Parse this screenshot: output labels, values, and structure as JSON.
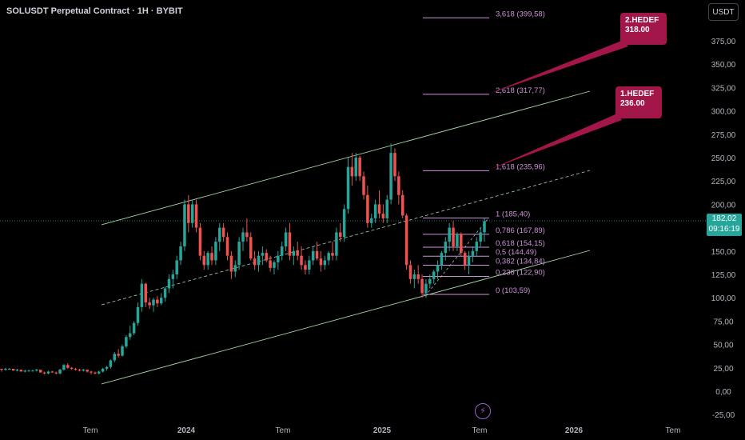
{
  "header": {
    "symbol_title": "SOLUSDT Perpetual Contract · 1H · BYBIT",
    "currency_button": "USDT"
  },
  "price_tag": {
    "price": "182,02",
    "countdown": "09:16:19"
  },
  "targets": [
    {
      "label": "2.HEDEF",
      "value": "318.00"
    },
    {
      "label": "1.HEDEF",
      "value": "236.00"
    }
  ],
  "colors": {
    "up": "#26a69a",
    "down": "#ef5350",
    "channel": "#a5d6a7",
    "fib": "#ce93d8",
    "target": "#a3164a",
    "price_line": "#26a69a"
  },
  "icons": {
    "bolt": "lightning-icon"
  },
  "chart_data": {
    "type": "candlestick",
    "y_axis": {
      "ylim": [
        -25,
        400
      ],
      "tick_labels": [
        "375,00",
        "350,00",
        "325,00",
        "300,00",
        "275,00",
        "250,00",
        "225,00",
        "200,00",
        "175,00",
        "150,00",
        "125,00",
        "100,00",
        "75,00",
        "50,00",
        "25,00",
        "0,00",
        "-25,00"
      ],
      "tick_values": [
        375,
        350,
        325,
        300,
        275,
        250,
        225,
        200,
        175,
        150,
        125,
        100,
        75,
        50,
        25,
        0,
        -25
      ]
    },
    "x_axis": {
      "tick_labels": [
        "Tem",
        "2024",
        "Tem",
        "2025",
        "Tem",
        "2026",
        "Tem"
      ]
    },
    "last_price": 182.02,
    "fibonacci": [
      {
        "label": "3,618 (399,58)",
        "value": 399.58
      },
      {
        "label": "2,618 (317,77)",
        "value": 317.77
      },
      {
        "label": "1,618 (235,96)",
        "value": 235.96
      },
      {
        "label": "1 (185,40)",
        "value": 185.4
      },
      {
        "label": "0,786 (167,89)",
        "value": 167.89
      },
      {
        "label": "0,618 (154,15)",
        "value": 154.15
      },
      {
        "label": "0,5 (144,49)",
        "value": 144.49
      },
      {
        "label": "0,382 (134,84)",
        "value": 134.84
      },
      {
        "label": "0,236 (122,90)",
        "value": 122.9
      },
      {
        "label": "0 (103,59)",
        "value": 103.59
      }
    ],
    "candles_ohlc": [
      [
        24,
        24,
        21,
        23
      ],
      [
        23,
        25,
        22,
        24
      ],
      [
        24,
        25,
        23,
        24
      ],
      [
        24,
        24,
        22,
        22
      ],
      [
        22,
        24,
        21,
        23
      ],
      [
        23,
        23,
        21,
        21
      ],
      [
        21,
        23,
        20,
        22
      ],
      [
        22,
        23,
        21,
        22
      ],
      [
        22,
        23,
        21,
        22
      ],
      [
        22,
        24,
        21,
        23
      ],
      [
        23,
        23,
        20,
        20
      ],
      [
        20,
        21,
        18,
        19
      ],
      [
        19,
        22,
        18,
        21
      ],
      [
        21,
        22,
        20,
        20
      ],
      [
        20,
        21,
        18,
        19
      ],
      [
        19,
        24,
        18,
        23
      ],
      [
        23,
        29,
        22,
        28
      ],
      [
        28,
        30,
        24,
        25
      ],
      [
        25,
        26,
        23,
        24
      ],
      [
        24,
        25,
        22,
        23
      ],
      [
        23,
        24,
        21,
        22
      ],
      [
        22,
        24,
        21,
        23
      ],
      [
        23,
        23,
        20,
        21
      ],
      [
        21,
        22,
        18,
        20
      ],
      [
        20,
        21,
        18,
        19
      ],
      [
        19,
        22,
        18,
        21
      ],
      [
        21,
        25,
        20,
        24
      ],
      [
        24,
        27,
        22,
        26
      ],
      [
        26,
        34,
        24,
        33
      ],
      [
        33,
        42,
        31,
        40
      ],
      [
        40,
        45,
        36,
        38
      ],
      [
        38,
        50,
        37,
        48
      ],
      [
        48,
        60,
        46,
        58
      ],
      [
        58,
        70,
        55,
        62
      ],
      [
        62,
        75,
        60,
        73
      ],
      [
        73,
        95,
        70,
        90
      ],
      [
        90,
        120,
        85,
        115
      ],
      [
        115,
        116,
        90,
        95
      ],
      [
        95,
        100,
        88,
        92
      ],
      [
        92,
        100,
        85,
        98
      ],
      [
        98,
        102,
        90,
        94
      ],
      [
        94,
        105,
        92,
        100
      ],
      [
        100,
        112,
        96,
        110
      ],
      [
        110,
        125,
        105,
        120
      ],
      [
        120,
        130,
        110,
        125
      ],
      [
        125,
        145,
        120,
        140
      ],
      [
        140,
        160,
        135,
        155
      ],
      [
        155,
        205,
        150,
        200
      ],
      [
        200,
        210,
        170,
        180
      ],
      [
        180,
        205,
        175,
        200
      ],
      [
        200,
        205,
        170,
        175
      ],
      [
        175,
        180,
        140,
        145
      ],
      [
        145,
        150,
        130,
        135
      ],
      [
        135,
        150,
        130,
        148
      ],
      [
        148,
        155,
        135,
        140
      ],
      [
        140,
        165,
        135,
        160
      ],
      [
        160,
        180,
        150,
        175
      ],
      [
        175,
        180,
        160,
        165
      ],
      [
        165,
        170,
        140,
        145
      ],
      [
        145,
        150,
        120,
        128
      ],
      [
        128,
        140,
        122,
        135
      ],
      [
        135,
        165,
        130,
        160
      ],
      [
        160,
        175,
        150,
        170
      ],
      [
        170,
        185,
        160,
        165
      ],
      [
        165,
        170,
        140,
        142
      ],
      [
        142,
        150,
        130,
        135
      ],
      [
        135,
        150,
        128,
        145
      ],
      [
        145,
        155,
        135,
        148
      ],
      [
        148,
        152,
        138,
        140
      ],
      [
        140,
        145,
        128,
        132
      ],
      [
        132,
        140,
        125,
        138
      ],
      [
        138,
        150,
        130,
        145
      ],
      [
        145,
        160,
        140,
        155
      ],
      [
        155,
        175,
        150,
        170
      ],
      [
        170,
        180,
        140,
        145
      ],
      [
        145,
        155,
        135,
        150
      ],
      [
        150,
        160,
        140,
        145
      ],
      [
        145,
        155,
        130,
        135
      ],
      [
        135,
        140,
        125,
        130
      ],
      [
        130,
        145,
        125,
        140
      ],
      [
        140,
        155,
        135,
        150
      ],
      [
        150,
        160,
        140,
        142
      ],
      [
        142,
        150,
        128,
        135
      ],
      [
        135,
        145,
        130,
        140
      ],
      [
        140,
        150,
        135,
        148
      ],
      [
        148,
        160,
        140,
        145
      ],
      [
        145,
        175,
        140,
        170
      ],
      [
        170,
        180,
        160,
        165
      ],
      [
        165,
        200,
        160,
        195
      ],
      [
        195,
        250,
        190,
        240
      ],
      [
        240,
        255,
        220,
        230
      ],
      [
        230,
        255,
        225,
        250
      ],
      [
        250,
        252,
        225,
        230
      ],
      [
        230,
        235,
        205,
        210
      ],
      [
        210,
        220,
        175,
        180
      ],
      [
        180,
        190,
        175,
        185
      ],
      [
        185,
        205,
        180,
        200
      ],
      [
        200,
        215,
        185,
        190
      ],
      [
        190,
        200,
        180,
        185
      ],
      [
        185,
        210,
        180,
        205
      ],
      [
        205,
        265,
        200,
        255
      ],
      [
        255,
        260,
        225,
        230
      ],
      [
        230,
        235,
        200,
        210
      ],
      [
        210,
        215,
        185,
        188
      ],
      [
        188,
        190,
        130,
        135
      ],
      [
        135,
        140,
        115,
        120
      ],
      [
        120,
        130,
        110,
        125
      ],
      [
        125,
        135,
        115,
        120
      ],
      [
        120,
        125,
        100,
        105
      ],
      [
        105,
        120,
        100,
        115
      ],
      [
        115,
        125,
        110,
        120
      ],
      [
        120,
        130,
        115,
        128
      ],
      [
        128,
        140,
        120,
        135
      ],
      [
        135,
        150,
        130,
        148
      ],
      [
        148,
        165,
        140,
        160
      ],
      [
        160,
        180,
        150,
        175
      ],
      [
        175,
        182,
        150,
        155
      ],
      [
        155,
        170,
        150,
        168
      ],
      [
        168,
        170,
        145,
        148
      ],
      [
        148,
        150,
        130,
        135
      ],
      [
        135,
        150,
        125,
        145
      ],
      [
        145,
        155,
        138,
        150
      ],
      [
        150,
        165,
        145,
        160
      ],
      [
        160,
        175,
        155,
        170
      ],
      [
        170,
        185,
        160,
        182
      ]
    ]
  }
}
